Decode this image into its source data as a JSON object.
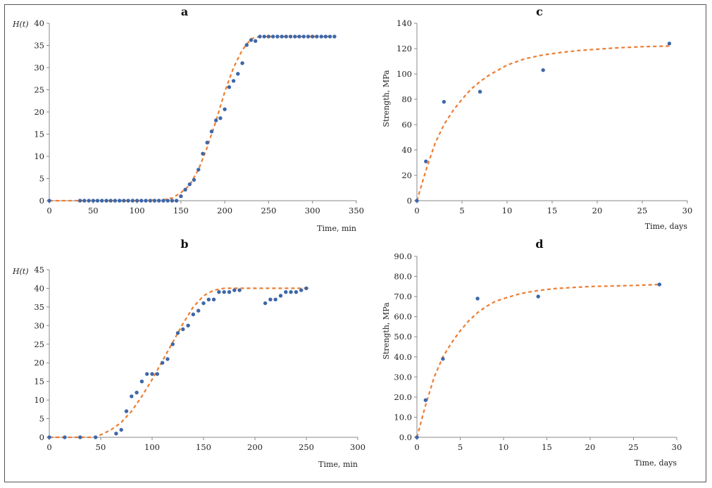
{
  "chart_data": [
    {
      "panel": "a",
      "type": "scatter",
      "xlabel": "Time, min",
      "ylabel": "H(t)",
      "xlim": [
        0,
        350
      ],
      "ylim": [
        0,
        40
      ],
      "xticks": [
        0,
        50,
        100,
        150,
        200,
        250,
        300,
        350
      ],
      "yticks": [
        0,
        5,
        10,
        15,
        20,
        25,
        30,
        35,
        40
      ],
      "grid": false,
      "colors": {
        "points": "#3e67a8",
        "fit": "#ed7d31"
      },
      "series": [
        {
          "kind": "points",
          "x": [
            0,
            35,
            40,
            45,
            50,
            55,
            60,
            65,
            70,
            75,
            80,
            85,
            90,
            95,
            100,
            105,
            110,
            115,
            120,
            125,
            130,
            135,
            140,
            145,
            150,
            155,
            160,
            165,
            170,
            175,
            180,
            185,
            190,
            195,
            200,
            205,
            210,
            215,
            220,
            225,
            230,
            235,
            240,
            245,
            250,
            255,
            260,
            265,
            270,
            275,
            280,
            285,
            290,
            295,
            300,
            305,
            310,
            315,
            320,
            325
          ],
          "y": [
            0,
            0,
            0,
            0,
            0,
            0,
            0,
            0,
            0,
            0,
            0,
            0,
            0,
            0,
            0,
            0,
            0,
            0,
            0,
            0,
            0,
            0,
            0,
            0,
            1,
            2.5,
            3.7,
            4.7,
            7,
            10.6,
            13.1,
            15.6,
            18.1,
            18.6,
            20.6,
            25.6,
            27,
            28.6,
            31,
            35.1,
            36.2,
            36,
            37,
            37,
            37,
            37,
            37,
            37,
            37,
            37,
            37,
            37,
            37,
            37,
            37,
            37,
            37,
            37,
            37,
            37
          ]
        },
        {
          "kind": "fit-dashed",
          "x": [
            0,
            100,
            130,
            140,
            150,
            160,
            170,
            180,
            190,
            200,
            210,
            220,
            230,
            240,
            260,
            280,
            300,
            325
          ],
          "y": [
            0,
            0,
            0.2,
            0.6,
            1.8,
            3.5,
            7,
            12,
            18,
            24.5,
            30,
            34,
            36.5,
            37,
            37,
            37,
            37,
            37
          ]
        }
      ]
    },
    {
      "panel": "b",
      "type": "scatter",
      "xlabel": "Time, min",
      "ylabel": "H(t)",
      "xlim": [
        0,
        300
      ],
      "ylim": [
        0,
        45
      ],
      "xticks": [
        0,
        50,
        100,
        150,
        200,
        250,
        300
      ],
      "yticks": [
        0,
        5,
        10,
        15,
        20,
        25,
        30,
        35,
        40,
        45
      ],
      "grid": false,
      "colors": {
        "points": "#3e67a8",
        "fit": "#ed7d31"
      },
      "series": [
        {
          "kind": "points",
          "x": [
            0,
            15,
            30,
            45,
            65,
            70,
            75,
            80,
            85,
            90,
            95,
            100,
            105,
            110,
            115,
            120,
            125,
            130,
            135,
            140,
            145,
            150,
            155,
            160,
            165,
            170,
            175,
            180,
            185,
            210,
            215,
            220,
            225,
            230,
            235,
            240,
            245,
            250
          ],
          "y": [
            0,
            0,
            0,
            0,
            1,
            2,
            7,
            11,
            12,
            15,
            17,
            17,
            17,
            20,
            21,
            25,
            28,
            29,
            30,
            33,
            34,
            36,
            37,
            37,
            39,
            39,
            39,
            39.5,
            39.5,
            36,
            37,
            37,
            38,
            39,
            39,
            39,
            39.5,
            40
          ]
        },
        {
          "kind": "fit-dashed",
          "x": [
            0,
            45,
            60,
            70,
            80,
            90,
            100,
            110,
            120,
            130,
            140,
            150,
            160,
            170,
            180,
            200,
            250
          ],
          "y": [
            0,
            0,
            2,
            4,
            7,
            11,
            15.5,
            20.5,
            25.5,
            30.5,
            35,
            38,
            39.5,
            40,
            40,
            40,
            40
          ]
        }
      ]
    },
    {
      "panel": "c",
      "type": "scatter",
      "xlabel": "Time, days",
      "ylabel": "Strength, MPa",
      "xlim": [
        0,
        30
      ],
      "ylim": [
        0,
        140
      ],
      "xticks": [
        0,
        5,
        10,
        15,
        20,
        25,
        30
      ],
      "yticks": [
        0,
        20,
        40,
        60,
        80,
        100,
        120,
        140
      ],
      "grid": false,
      "colors": {
        "points": "#3e67a8",
        "fit": "#ed7d31"
      },
      "series": [
        {
          "kind": "points",
          "x": [
            0,
            1,
            3,
            7,
            14,
            28
          ],
          "y": [
            0,
            31,
            78,
            86,
            103,
            124
          ]
        },
        {
          "kind": "fit-dashed",
          "x": [
            0,
            0.5,
            1,
            2,
            3,
            4,
            5,
            6,
            7,
            8,
            9,
            10,
            12,
            14,
            16,
            18,
            20,
            22,
            25,
            28
          ],
          "y": [
            0,
            12,
            24,
            45,
            60,
            71,
            80,
            88,
            94,
            99,
            103,
            107,
            112,
            115,
            117,
            118.5,
            119.5,
            120.5,
            121.5,
            122
          ]
        }
      ]
    },
    {
      "panel": "d",
      "type": "scatter",
      "xlabel": "Time, days",
      "ylabel": "Strength, MPa",
      "xlim": [
        0,
        30
      ],
      "ylim": [
        0,
        90
      ],
      "xticks": [
        0,
        5,
        10,
        15,
        20,
        25,
        30
      ],
      "yticks": [
        "0.0",
        "10.0",
        "20.0",
        "30.0",
        "40.0",
        "50.0",
        "60.0",
        "70.0",
        "80.0",
        "90.0"
      ],
      "grid": false,
      "colors": {
        "points": "#3e67a8",
        "fit": "#ed7d31"
      },
      "series": [
        {
          "kind": "points",
          "x": [
            0,
            1,
            3,
            7,
            14,
            28
          ],
          "y": [
            0,
            18.5,
            39,
            69,
            70,
            76
          ]
        },
        {
          "kind": "fit-dashed",
          "x": [
            0,
            0.5,
            1,
            2,
            3,
            4,
            5,
            6,
            7,
            8,
            9,
            10,
            12,
            14,
            16,
            18,
            20,
            22,
            25,
            28
          ],
          "y": [
            0,
            8,
            16,
            30,
            40,
            47,
            53,
            58,
            62,
            65,
            67.5,
            69,
            71.5,
            73,
            74,
            74.5,
            75,
            75.2,
            75.5,
            76
          ]
        }
      ]
    }
  ]
}
